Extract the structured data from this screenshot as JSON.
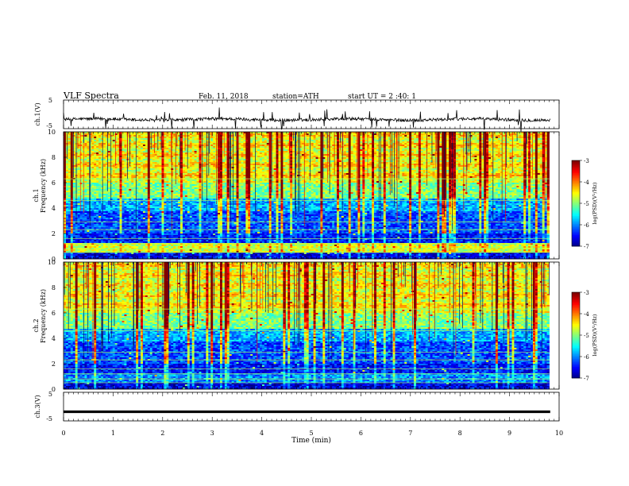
{
  "header": {
    "title": "VLF  Spectra",
    "date": "Feb. 11, 2018",
    "station": "station=ATH",
    "start": "start  UT  =   2  :40: 1"
  },
  "chart_data": [
    {
      "type": "line",
      "panel": "ch1-waveform",
      "ylabel": "ch.1(V)",
      "ylim": [
        -5,
        5
      ],
      "yticks": [
        "5",
        "-5"
      ],
      "xlim": [
        0,
        10
      ],
      "baseline": -1.8,
      "series": [
        {
          "values": [
            -1.8,
            -1.5,
            -2.1,
            -1.6,
            -2.0,
            -1.4,
            -1.9,
            -1.7,
            -2.2,
            -1.6,
            -1.8,
            -1.5,
            -2.0,
            -1.7,
            -1.9,
            -1.6,
            -2.1,
            -1.8,
            -1.5,
            -2.0
          ]
        }
      ]
    },
    {
      "type": "heatmap",
      "panel": "ch1-spectrogram",
      "ylabel_top": "ch.1",
      "ylabel": "Frequency  (kHz)",
      "ylim": [
        0,
        10
      ],
      "yticks": [
        "0",
        "2",
        "4",
        "6",
        "8",
        "10"
      ],
      "xlim": [
        0,
        9.8
      ],
      "colorbar": {
        "label": "log(PSD)(V²/Hz)",
        "range": [
          -7,
          -3
        ],
        "ticks": [
          "-3",
          "-4",
          "-5",
          "-6",
          "-7"
        ]
      }
    },
    {
      "type": "heatmap",
      "panel": "ch2-spectrogram",
      "ylabel_top": "ch.2",
      "ylabel": "Frequency  (kHz)",
      "ylim": [
        0,
        10
      ],
      "yticks": [
        "0",
        "2",
        "4",
        "6",
        "8",
        "10"
      ],
      "xlim": [
        0,
        9.8
      ],
      "colorbar": {
        "label": "log(PSD)(V²/Hz)",
        "range": [
          -7,
          -3
        ],
        "ticks": [
          "-3",
          "-4",
          "-5",
          "-6",
          "-7"
        ]
      }
    },
    {
      "type": "line",
      "panel": "ch3-waveform",
      "ylabel": "ch.3(V)",
      "ylim": [
        -5,
        5
      ],
      "yticks": [
        "5",
        "-5"
      ],
      "xlim": [
        0,
        10
      ],
      "xlabel": "Time  (min)",
      "xticks": [
        "0",
        "1",
        "2",
        "3",
        "4",
        "5",
        "6",
        "7",
        "8",
        "9",
        "10"
      ],
      "baseline": -1.8,
      "series": [
        {
          "values": [
            -1.8,
            -1.8,
            -1.8,
            -1.8,
            -1.8,
            -1.8,
            -1.8,
            -1.8,
            -1.8,
            -1.8
          ]
        }
      ]
    }
  ]
}
